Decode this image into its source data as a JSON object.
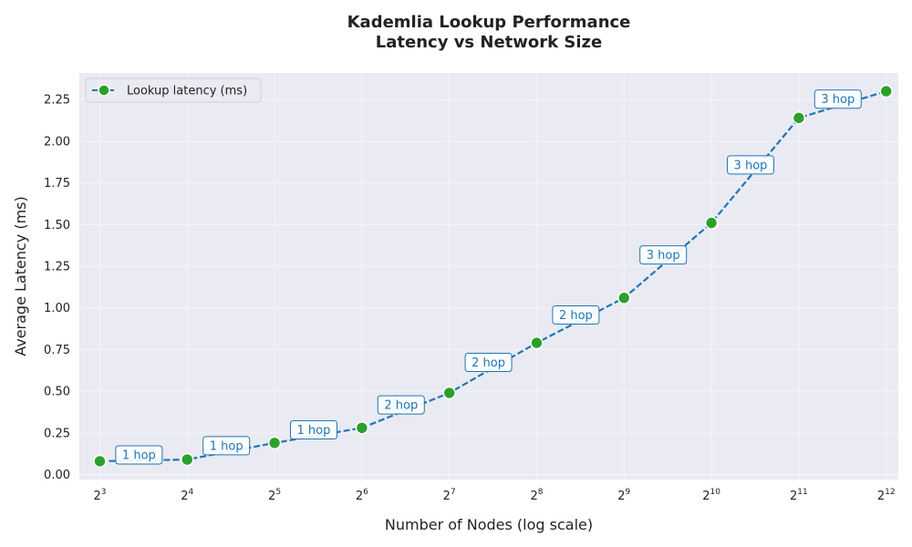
{
  "chart_data": {
    "type": "line",
    "title_lines": [
      "Kademlia Lookup Performance",
      "Latency vs Network Size"
    ],
    "xlabel": "Number of Nodes (log scale)",
    "ylabel": "Average Latency (ms)",
    "x_scale": "log2",
    "x_ticks": [
      {
        "base": "2",
        "exp": "3",
        "value": 8
      },
      {
        "base": "2",
        "exp": "4",
        "value": 16
      },
      {
        "base": "2",
        "exp": "5",
        "value": 32
      },
      {
        "base": "2",
        "exp": "6",
        "value": 64
      },
      {
        "base": "2",
        "exp": "7",
        "value": 128
      },
      {
        "base": "2",
        "exp": "8",
        "value": 256
      },
      {
        "base": "2",
        "exp": "9",
        "value": 512
      },
      {
        "base": "2",
        "exp": "10",
        "value": 1024
      },
      {
        "base": "2",
        "exp": "11",
        "value": 2048
      },
      {
        "base": "2",
        "exp": "12",
        "value": 4096
      }
    ],
    "y_ticks": [
      "0.00",
      "0.25",
      "0.50",
      "0.75",
      "1.00",
      "1.25",
      "1.50",
      "1.75",
      "2.00",
      "2.25"
    ],
    "ylim": [
      -0.03,
      2.41
    ],
    "xlim": [
      6.8,
      4510
    ],
    "grid": true,
    "legend_position": "top-left",
    "series": [
      {
        "name": "Lookup latency (ms)",
        "color": "#1f77b4",
        "marker_color": "#2ca02c",
        "x": [
          8,
          16,
          32,
          64,
          128,
          256,
          512,
          1024,
          2048,
          4096
        ],
        "y": [
          0.08,
          0.09,
          0.19,
          0.28,
          0.49,
          0.79,
          1.06,
          1.51,
          2.14,
          2.3
        ]
      }
    ],
    "annotations": [
      "1 hop",
      "1 hop",
      "1 hop",
      "2 hop",
      "2 hop",
      "2 hop",
      "3 hop",
      "3 hop",
      "3 hop"
    ],
    "colors": {
      "plot_background": "#eaeaf2",
      "grid": "#f4f4f8",
      "annotation_border": "#1f77b4"
    }
  }
}
